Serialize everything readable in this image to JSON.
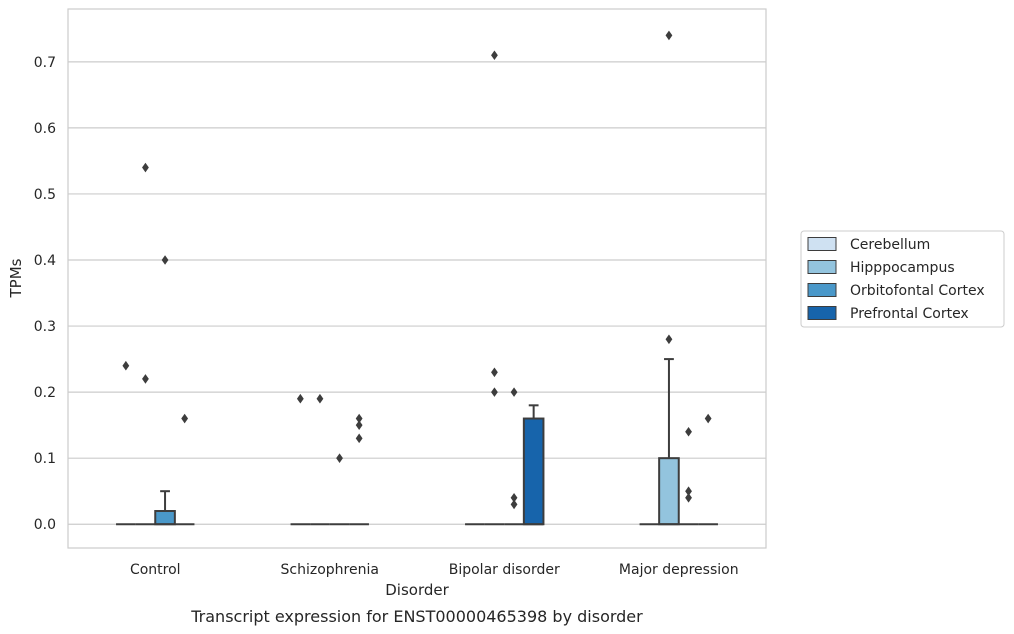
{
  "chart_data": {
    "type": "box",
    "caption": "Transcript expression for ENST00000465398 by disorder",
    "xlabel": "Disorder",
    "ylabel": "TPMs",
    "ylim": [
      -0.036,
      0.78
    ],
    "yticks": [
      0.0,
      0.1,
      0.2,
      0.3,
      0.4,
      0.5,
      0.6,
      0.7
    ],
    "ytick_labels": [
      "0.0",
      "0.1",
      "0.2",
      "0.3",
      "0.4",
      "0.5",
      "0.6",
      "0.7"
    ],
    "grid": "horizontal",
    "legend_position": "right",
    "categories": [
      "Control",
      "Schizophrenia",
      "Bipolar disorder",
      "Major depression"
    ],
    "series": [
      {
        "name": "Cerebellum",
        "color": "#cfe1f2",
        "boxes": [
          {
            "q1": 0,
            "median": 0,
            "q3": 0,
            "whisker_low": 0,
            "whisker_high": 0,
            "outliers": [
              0.24
            ]
          },
          {
            "q1": 0,
            "median": 0,
            "q3": 0,
            "whisker_low": 0,
            "whisker_high": 0,
            "outliers": [
              0.19
            ]
          },
          {
            "q1": 0,
            "median": 0,
            "q3": 0,
            "whisker_low": 0,
            "whisker_high": 0,
            "outliers": []
          },
          {
            "q1": 0,
            "median": 0,
            "q3": 0,
            "whisker_low": 0,
            "whisker_high": 0,
            "outliers": []
          }
        ]
      },
      {
        "name": "Hipppocampus",
        "color": "#93c4de",
        "boxes": [
          {
            "q1": 0,
            "median": 0,
            "q3": 0,
            "whisker_low": 0,
            "whisker_high": 0,
            "outliers": [
              0.54,
              0.22
            ]
          },
          {
            "q1": 0,
            "median": 0,
            "q3": 0,
            "whisker_low": 0,
            "whisker_high": 0,
            "outliers": [
              0.19
            ]
          },
          {
            "q1": 0,
            "median": 0,
            "q3": 0,
            "whisker_low": 0,
            "whisker_high": 0,
            "outliers": [
              0.71,
              0.23,
              0.2
            ]
          },
          {
            "q1": 0,
            "median": 0,
            "q3": 0.1,
            "whisker_low": 0,
            "whisker_high": 0.25,
            "outliers": [
              0.74,
              0.28
            ]
          }
        ]
      },
      {
        "name": "Orbitofontal Cortex",
        "color": "#4a98c9",
        "boxes": [
          {
            "q1": 0,
            "median": 0,
            "q3": 0.02,
            "whisker_low": 0,
            "whisker_high": 0.05,
            "outliers": [
              0.4
            ]
          },
          {
            "q1": 0,
            "median": 0,
            "q3": 0,
            "whisker_low": 0,
            "whisker_high": 0,
            "outliers": [
              0.1
            ]
          },
          {
            "q1": 0,
            "median": 0,
            "q3": 0,
            "whisker_low": 0,
            "whisker_high": 0,
            "outliers": [
              0.2,
              0.04,
              0.03
            ]
          },
          {
            "q1": 0,
            "median": 0,
            "q3": 0,
            "whisker_low": 0,
            "whisker_high": 0,
            "outliers": [
              0.14,
              0.05,
              0.04
            ]
          }
        ]
      },
      {
        "name": "Prefrontal Cortex",
        "color": "#1764ab",
        "boxes": [
          {
            "q1": 0,
            "median": 0,
            "q3": 0,
            "whisker_low": 0,
            "whisker_high": 0,
            "outliers": [
              0.16
            ]
          },
          {
            "q1": 0,
            "median": 0,
            "q3": 0,
            "whisker_low": 0,
            "whisker_high": 0,
            "outliers": [
              0.16,
              0.15,
              0.13
            ]
          },
          {
            "q1": 0,
            "median": 0,
            "q3": 0.16,
            "whisker_low": 0,
            "whisker_high": 0.18,
            "outliers": []
          },
          {
            "q1": 0,
            "median": 0,
            "q3": 0,
            "whisker_low": 0,
            "whisker_high": 0,
            "outliers": [
              0.16
            ]
          }
        ]
      }
    ]
  }
}
